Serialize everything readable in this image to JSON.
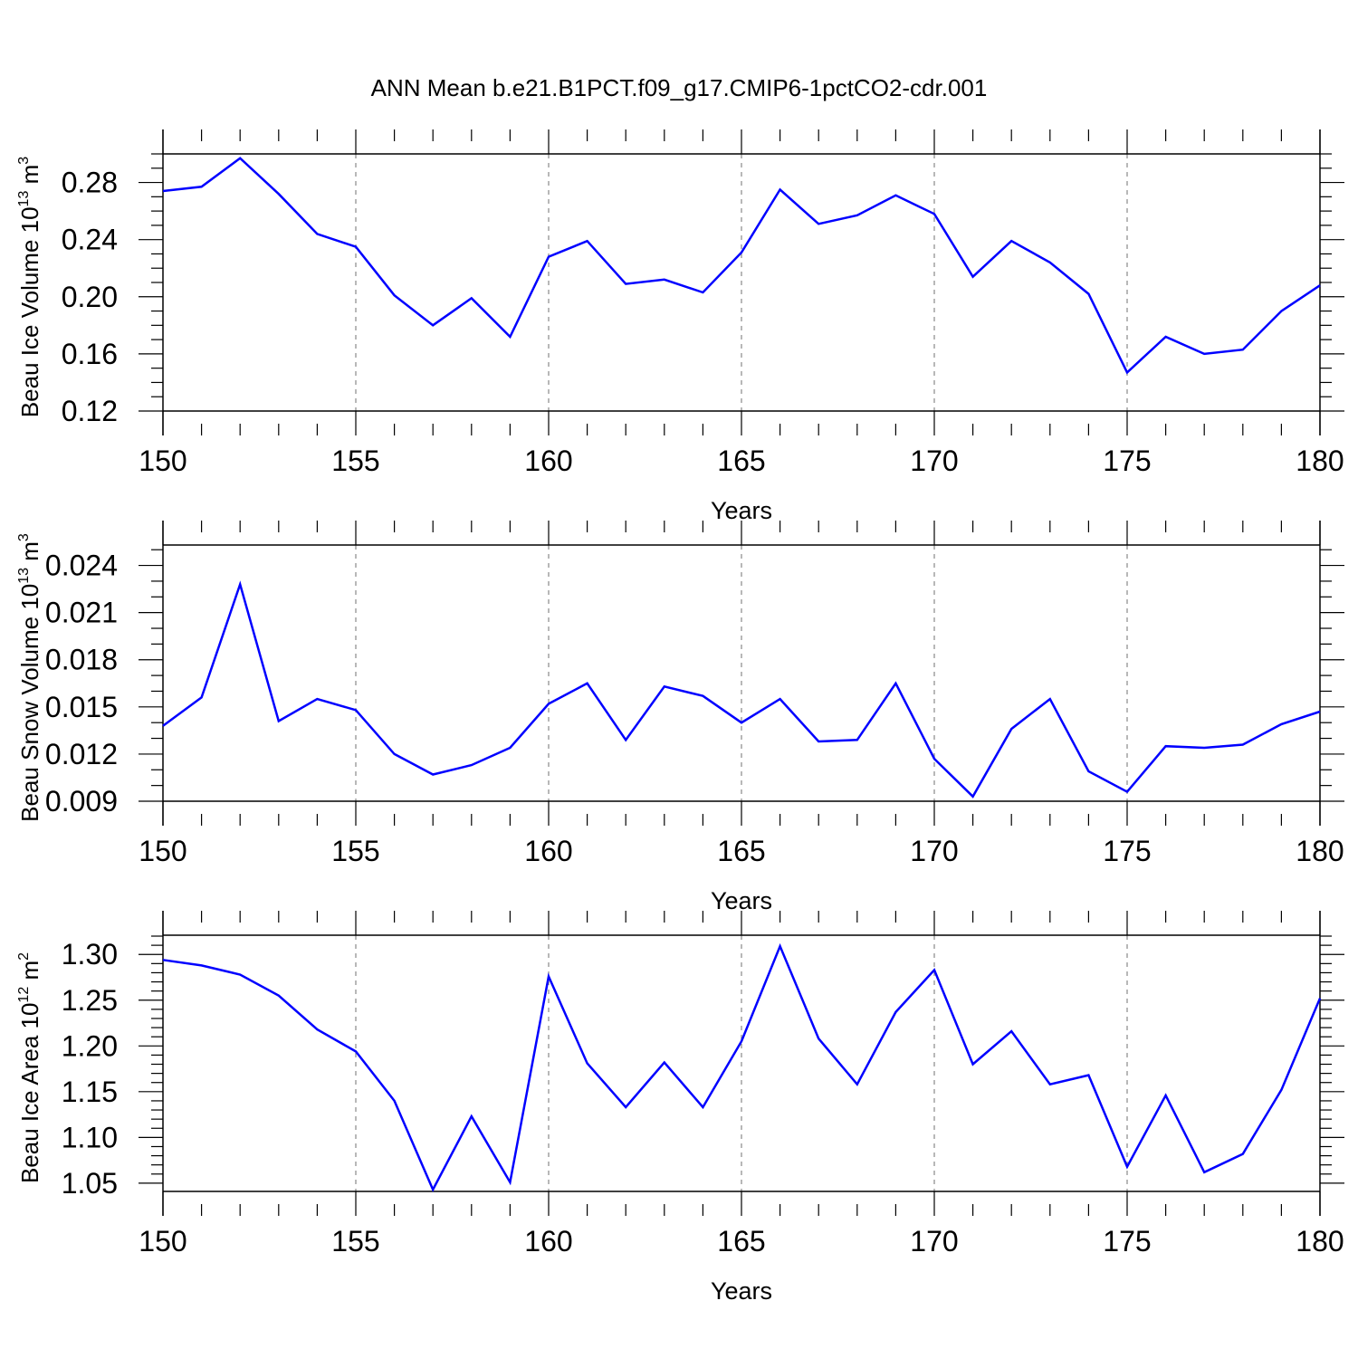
{
  "title": "ANN Mean b.e21.B1PCT.f09_g17.CMIP6-1pctCO2-cdr.001",
  "colors": {
    "line": "#0000ff",
    "axis": "#000000",
    "grid": "#888888"
  },
  "chart_data": [
    {
      "type": "line",
      "ylabel": "Beau Ice Volume 10",
      "ylabel_exp": "13",
      "ylabel_unit": " m",
      "ylabel_unit_exp": "3",
      "xlabel": "Years",
      "xlim": [
        150,
        180
      ],
      "ylim": [
        0.12,
        0.3
      ],
      "xticks": [
        150,
        155,
        160,
        165,
        170,
        175,
        180
      ],
      "xtick_labels": [
        "150",
        "155",
        "160",
        "165",
        "170",
        "175",
        "180"
      ],
      "yticks": [
        0.12,
        0.16,
        0.2,
        0.24,
        0.28
      ],
      "ytick_labels": [
        "0.12",
        "0.16",
        "0.20",
        "0.24",
        "0.28"
      ],
      "ymin_step": 0.01,
      "grid": "dashed vertical at major x ticks",
      "x": [
        150,
        151,
        152,
        153,
        154,
        155,
        156,
        157,
        158,
        159,
        160,
        161,
        162,
        163,
        164,
        165,
        166,
        167,
        168,
        169,
        170,
        171,
        172,
        173,
        174,
        175,
        176,
        177,
        178,
        179,
        180
      ],
      "y": [
        0.274,
        0.277,
        0.297,
        0.272,
        0.244,
        0.235,
        0.201,
        0.18,
        0.199,
        0.172,
        0.228,
        0.239,
        0.209,
        0.212,
        0.203,
        0.231,
        0.275,
        0.251,
        0.257,
        0.271,
        0.258,
        0.214,
        0.239,
        0.224,
        0.202,
        0.147,
        0.172,
        0.16,
        0.163,
        0.19,
        0.208
      ]
    },
    {
      "type": "line",
      "ylabel": "Beau Snow Volume 10",
      "ylabel_exp": "13",
      "ylabel_unit": " m",
      "ylabel_unit_exp": "3",
      "xlabel": "Years",
      "xlim": [
        150,
        180
      ],
      "ylim": [
        0.009,
        0.0253
      ],
      "xticks": [
        150,
        155,
        160,
        165,
        170,
        175,
        180
      ],
      "xtick_labels": [
        "150",
        "155",
        "160",
        "165",
        "170",
        "175",
        "180"
      ],
      "yticks": [
        0.009,
        0.012,
        0.015,
        0.018,
        0.021,
        0.024
      ],
      "ytick_labels": [
        "0.009",
        "0.012",
        "0.015",
        "0.018",
        "0.021",
        "0.024"
      ],
      "ymin_step": 0.001,
      "grid": "dashed vertical at major x ticks",
      "x": [
        150,
        151,
        152,
        153,
        154,
        155,
        156,
        157,
        158,
        159,
        160,
        161,
        162,
        163,
        164,
        165,
        166,
        167,
        168,
        169,
        170,
        171,
        172,
        173,
        174,
        175,
        176,
        177,
        178,
        179,
        180
      ],
      "y": [
        0.0138,
        0.0156,
        0.0228,
        0.0141,
        0.0155,
        0.0148,
        0.012,
        0.0107,
        0.0113,
        0.0124,
        0.0152,
        0.0165,
        0.0129,
        0.0163,
        0.0157,
        0.014,
        0.0155,
        0.0128,
        0.0129,
        0.0165,
        0.0117,
        0.0093,
        0.0136,
        0.0155,
        0.0109,
        0.0096,
        0.0125,
        0.0124,
        0.0126,
        0.0139,
        0.0147
      ]
    },
    {
      "type": "line",
      "ylabel": "Beau Ice Area 10",
      "ylabel_exp": "12",
      "ylabel_unit": " m",
      "ylabel_unit_exp": "2",
      "xlabel": "Years",
      "xlim": [
        150,
        180
      ],
      "ylim": [
        1.041,
        1.321
      ],
      "xticks": [
        150,
        155,
        160,
        165,
        170,
        175,
        180
      ],
      "xtick_labels": [
        "150",
        "155",
        "160",
        "165",
        "170",
        "175",
        "180"
      ],
      "yticks": [
        1.05,
        1.1,
        1.15,
        1.2,
        1.25,
        1.3
      ],
      "ytick_labels": [
        "1.05",
        "1.10",
        "1.15",
        "1.20",
        "1.25",
        "1.30"
      ],
      "ymin_step": 0.01,
      "grid": "dashed vertical at major x ticks",
      "x": [
        150,
        151,
        152,
        153,
        154,
        155,
        156,
        157,
        158,
        159,
        160,
        161,
        162,
        163,
        164,
        165,
        166,
        167,
        168,
        169,
        170,
        171,
        172,
        173,
        174,
        175,
        176,
        177,
        178,
        179,
        180
      ],
      "y": [
        1.294,
        1.288,
        1.278,
        1.255,
        1.218,
        1.194,
        1.14,
        1.043,
        1.123,
        1.051,
        1.276,
        1.181,
        1.133,
        1.182,
        1.133,
        1.205,
        1.309,
        1.208,
        1.158,
        1.237,
        1.283,
        1.18,
        1.216,
        1.158,
        1.168,
        1.068,
        1.146,
        1.062,
        1.082,
        1.152,
        1.252
      ]
    }
  ]
}
